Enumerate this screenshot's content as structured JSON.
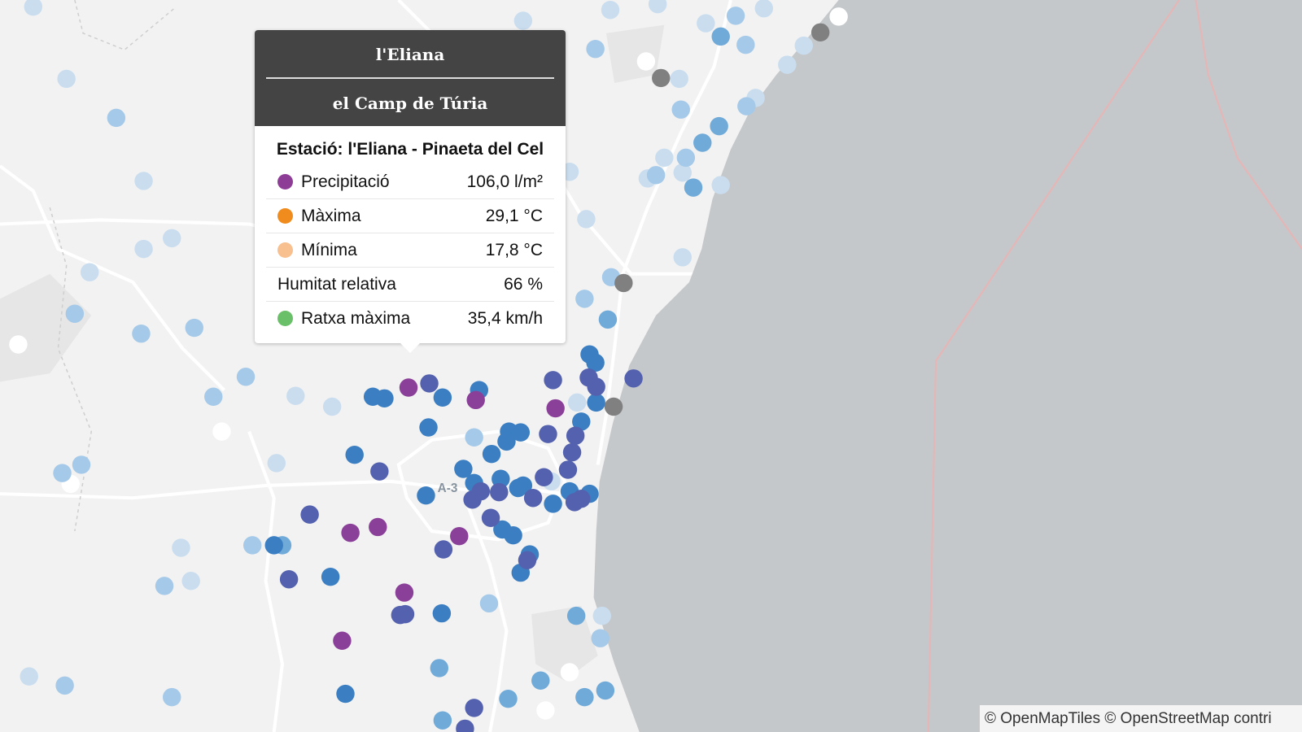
{
  "tooltip": {
    "municipality": "l'Eliana",
    "region": "el Camp de Túria",
    "station": "Estació: l'Eliana - Pinaeta del Cel",
    "rows": [
      {
        "label": "Precipitació",
        "value": "106,0 l/m²",
        "color": "#8e3d97"
      },
      {
        "label": "Màxima",
        "value": "29,1 °C",
        "color": "#f08c1e"
      },
      {
        "label": "Mínima",
        "value": "17,8 °C",
        "color": "#f7c08e"
      },
      {
        "label": "Humitat relativa",
        "value": "66 %"
      },
      {
        "label": "Ratxa màxima",
        "value": "35,4 km/h",
        "color": "#6abf69"
      }
    ]
  },
  "map": {
    "road_label": "A-3",
    "attribution": "© OpenMapTiles © OpenStreetMap contri"
  }
}
